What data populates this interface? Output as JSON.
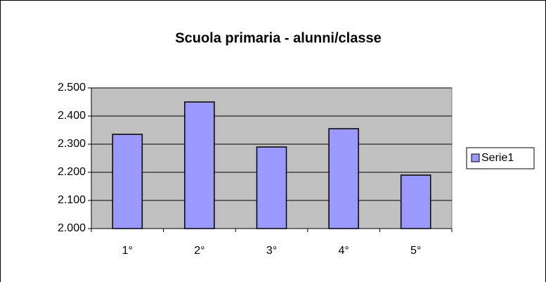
{
  "chart_data": {
    "type": "bar",
    "title": "Scuola primaria - alunni/classe",
    "categories": [
      "1°",
      "2°",
      "3°",
      "4°",
      "5°"
    ],
    "series": [
      {
        "name": "Serie1",
        "color": "#9999ff",
        "values": [
          2335,
          2450,
          2290,
          2355,
          2190
        ]
      }
    ],
    "ylim": [
      2000,
      2500
    ],
    "yticks": [
      {
        "value": 2000,
        "label": "2.000"
      },
      {
        "value": 2100,
        "label": "2.100"
      },
      {
        "value": 2200,
        "label": "2.200"
      },
      {
        "value": 2300,
        "label": "2.300"
      },
      {
        "value": 2400,
        "label": "2.400"
      },
      {
        "value": 2500,
        "label": "2.500"
      }
    ],
    "grid": true,
    "legend": "right"
  }
}
